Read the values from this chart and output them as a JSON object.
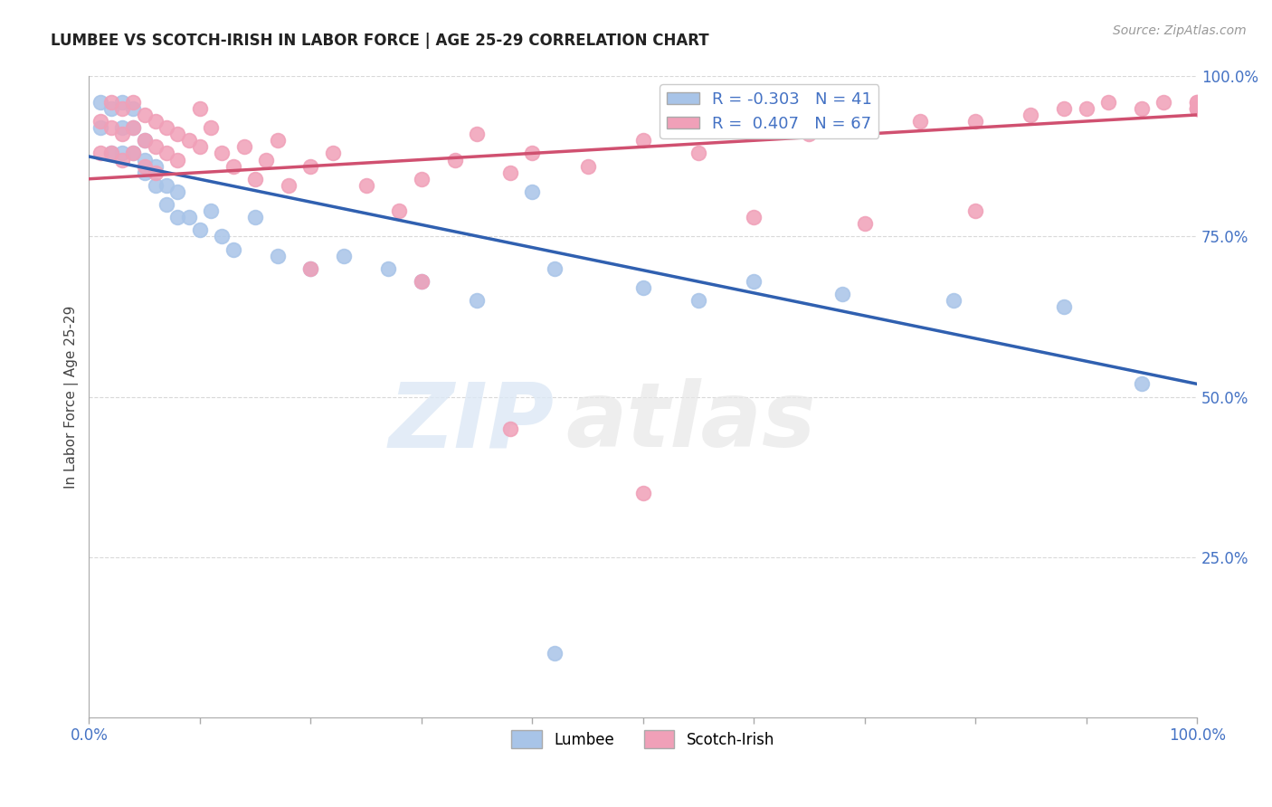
{
  "title": "LUMBEE VS SCOTCH-IRISH IN LABOR FORCE | AGE 25-29 CORRELATION CHART",
  "source_text": "Source: ZipAtlas.com",
  "ylabel": "In Labor Force | Age 25-29",
  "xlim": [
    0.0,
    1.0
  ],
  "ylim": [
    0.0,
    1.0
  ],
  "R_lumbee": -0.303,
  "N_lumbee": 41,
  "R_scotch": 0.407,
  "N_scotch": 67,
  "lumbee_color": "#a8c4e8",
  "scotch_color": "#f0a0b8",
  "line_lumbee_color": "#3060b0",
  "line_scotch_color": "#d05070",
  "lumbee_x": [
    0.01,
    0.01,
    0.02,
    0.02,
    0.03,
    0.03,
    0.03,
    0.04,
    0.04,
    0.04,
    0.05,
    0.05,
    0.05,
    0.06,
    0.06,
    0.07,
    0.07,
    0.08,
    0.08,
    0.09,
    0.1,
    0.11,
    0.12,
    0.13,
    0.15,
    0.17,
    0.2,
    0.23,
    0.27,
    0.3,
    0.35,
    0.4,
    0.42,
    0.5,
    0.55,
    0.6,
    0.68,
    0.78,
    0.88,
    0.95,
    0.42
  ],
  "lumbee_y": [
    0.96,
    0.92,
    0.95,
    0.88,
    0.96,
    0.92,
    0.88,
    0.95,
    0.92,
    0.88,
    0.87,
    0.9,
    0.85,
    0.86,
    0.83,
    0.83,
    0.8,
    0.82,
    0.78,
    0.78,
    0.76,
    0.79,
    0.75,
    0.73,
    0.78,
    0.72,
    0.7,
    0.72,
    0.7,
    0.68,
    0.65,
    0.82,
    0.7,
    0.67,
    0.65,
    0.68,
    0.66,
    0.65,
    0.64,
    0.52,
    0.1
  ],
  "scotch_x": [
    0.01,
    0.01,
    0.02,
    0.02,
    0.02,
    0.03,
    0.03,
    0.03,
    0.04,
    0.04,
    0.04,
    0.05,
    0.05,
    0.05,
    0.06,
    0.06,
    0.06,
    0.07,
    0.07,
    0.08,
    0.08,
    0.09,
    0.1,
    0.1,
    0.11,
    0.12,
    0.13,
    0.14,
    0.15,
    0.16,
    0.17,
    0.18,
    0.2,
    0.22,
    0.25,
    0.28,
    0.3,
    0.33,
    0.35,
    0.38,
    0.4,
    0.45,
    0.5,
    0.55,
    0.6,
    0.65,
    0.7,
    0.75,
    0.8,
    0.85,
    0.88,
    0.9,
    0.92,
    0.95,
    0.97,
    1.0,
    1.0,
    1.0,
    1.0,
    1.0,
    0.2,
    0.3,
    0.38,
    0.5,
    0.6,
    0.7,
    0.8
  ],
  "scotch_y": [
    0.93,
    0.88,
    0.96,
    0.92,
    0.88,
    0.95,
    0.91,
    0.87,
    0.96,
    0.92,
    0.88,
    0.94,
    0.9,
    0.86,
    0.93,
    0.89,
    0.85,
    0.92,
    0.88,
    0.91,
    0.87,
    0.9,
    0.95,
    0.89,
    0.92,
    0.88,
    0.86,
    0.89,
    0.84,
    0.87,
    0.9,
    0.83,
    0.86,
    0.88,
    0.83,
    0.79,
    0.84,
    0.87,
    0.91,
    0.85,
    0.88,
    0.86,
    0.9,
    0.88,
    0.92,
    0.91,
    0.94,
    0.93,
    0.93,
    0.94,
    0.95,
    0.95,
    0.96,
    0.95,
    0.96,
    0.95,
    0.96,
    0.95,
    0.96,
    0.95,
    0.7,
    0.68,
    0.45,
    0.35,
    0.78,
    0.77,
    0.79
  ],
  "watermark_top": "ZIP",
  "watermark_bot": "atlas",
  "bg_color": "#ffffff",
  "grid_color": "#d0d0d0",
  "title_color": "#222222",
  "source_color": "#999999",
  "tick_color": "#4472c4",
  "ylabel_color": "#444444"
}
